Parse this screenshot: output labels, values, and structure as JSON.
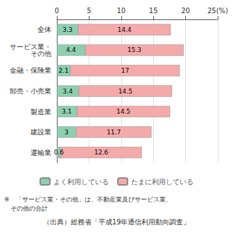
{
  "chart_data": {
    "type": "bar",
    "orientation": "horizontal",
    "stacked": true,
    "data_labels": true,
    "grid": true,
    "legend": "bottom",
    "categories": [
      "全体",
      "サービス業・\nその他",
      "金融・保険業",
      "卸売・小売業",
      "製造業",
      "建設業",
      "運輸業"
    ],
    "series": [
      {
        "name": "よく利用している",
        "color": "#8ECFB0",
        "values": [
          3.3,
          4.4,
          2.1,
          3.4,
          3.1,
          3.0,
          0.6
        ]
      },
      {
        "name": "たまに利用している",
        "color": "#F4AAAA",
        "values": [
          14.4,
          15.3,
          17.0,
          14.5,
          14.5,
          11.7,
          12.6
        ]
      }
    ],
    "xlim": [
      0,
      25
    ],
    "xticks": [
      0,
      5,
      10,
      15,
      20,
      {
        "value": 25,
        "label": "25(%)"
      }
    ],
    "annotations": [
      "※　「サービス業・その他」は、不動産業及びサービス業、",
      "　その他の合計",
      "（出典）総務省「平成19年通信利用動向調査」"
    ]
  }
}
